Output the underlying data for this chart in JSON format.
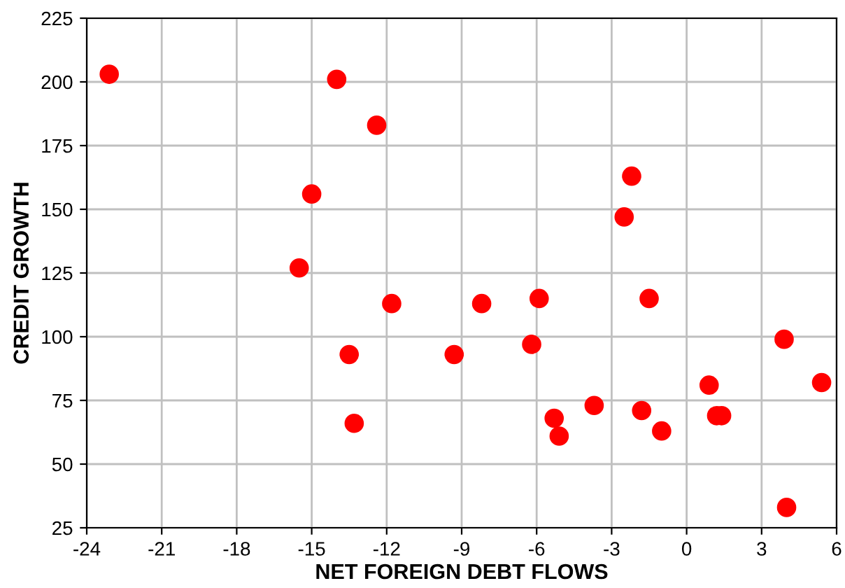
{
  "chart_data": {
    "type": "scatter",
    "xlabel": "NET FOREIGN DEBT FLOWS",
    "ylabel": "CREDIT GROWTH",
    "x": [
      -23.1,
      -14.0,
      -12.4,
      -15.0,
      -15.5,
      -11.8,
      -13.5,
      -13.3,
      -9.3,
      -8.2,
      -5.9,
      -6.2,
      -5.3,
      -5.1,
      -3.7,
      -2.5,
      -2.2,
      -1.5,
      -1.8,
      -1.0,
      0.9,
      1.2,
      1.4,
      3.9,
      4.0,
      5.4
    ],
    "series": [
      {
        "color": "#ff0000",
        "values": [
          203,
          201,
          183,
          156,
          127,
          113,
          93,
          66,
          93,
          113,
          115,
          97,
          68,
          61,
          73,
          147,
          163,
          115,
          71,
          63,
          81,
          69,
          69,
          99,
          33,
          82
        ]
      }
    ],
    "xlim": [
      -24,
      6
    ],
    "xticks": [
      -24,
      -21,
      -18,
      -15,
      -12,
      -9,
      -6,
      -3,
      0,
      3,
      6
    ],
    "ylim": [
      25,
      225
    ],
    "yticks": [
      25,
      50,
      75,
      100,
      125,
      150,
      175,
      200,
      225
    ],
    "grid": true,
    "marker": "circle"
  }
}
